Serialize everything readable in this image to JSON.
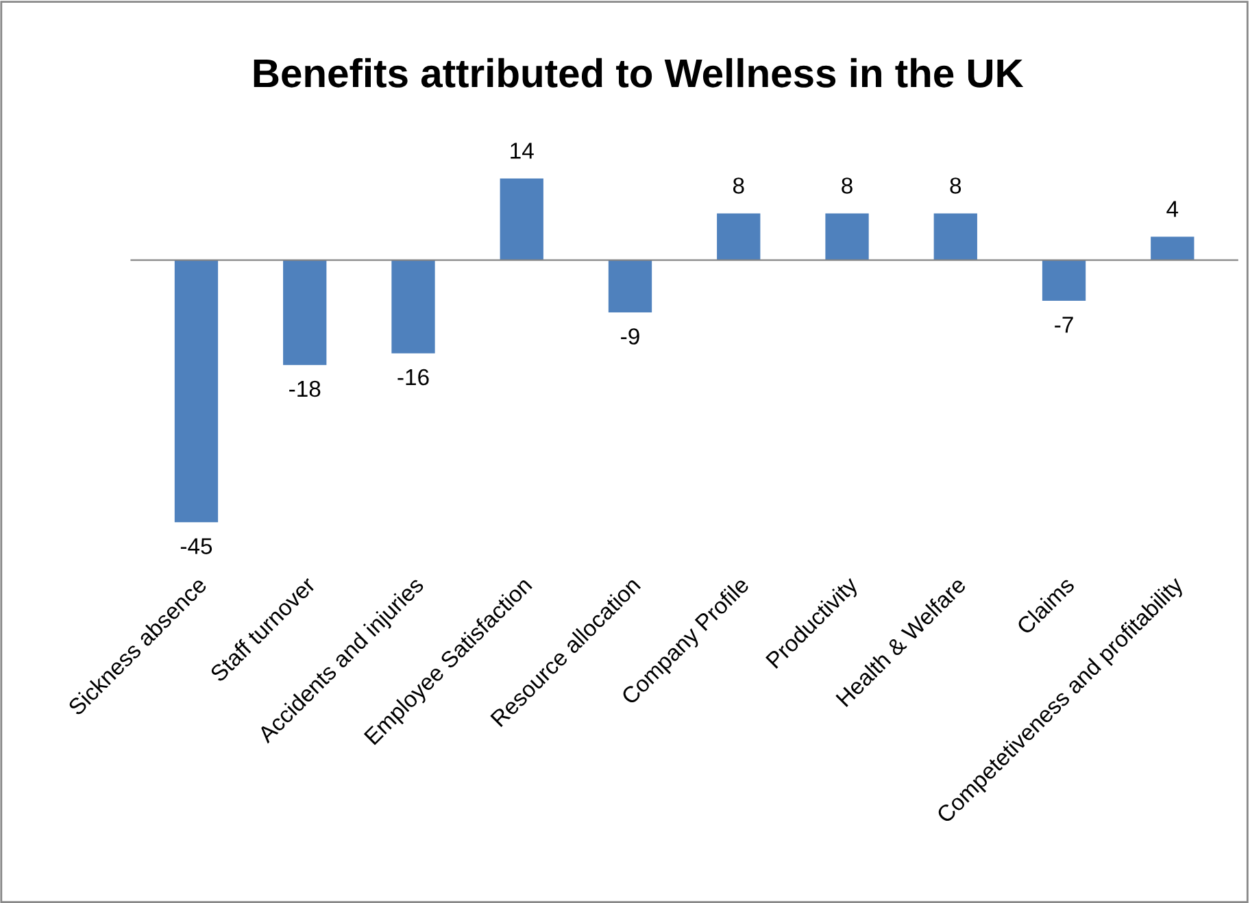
{
  "chart_data": {
    "type": "bar",
    "title": "Benefits attributed to Wellness in the UK",
    "categories": [
      "Sickness absence",
      "Staff turnover",
      "Accidents and injuries",
      "Employee Satisfaction",
      "Resource allocation",
      "Company Profile",
      "Productivity",
      "Health & Welfare",
      "Claims",
      "Competetiveness and profitability"
    ],
    "values": [
      -45,
      -18,
      -16,
      14,
      -9,
      8,
      8,
      8,
      -7,
      4
    ],
    "color": "#4f81bd",
    "data_labels": true,
    "grid": false,
    "legend": false
  }
}
